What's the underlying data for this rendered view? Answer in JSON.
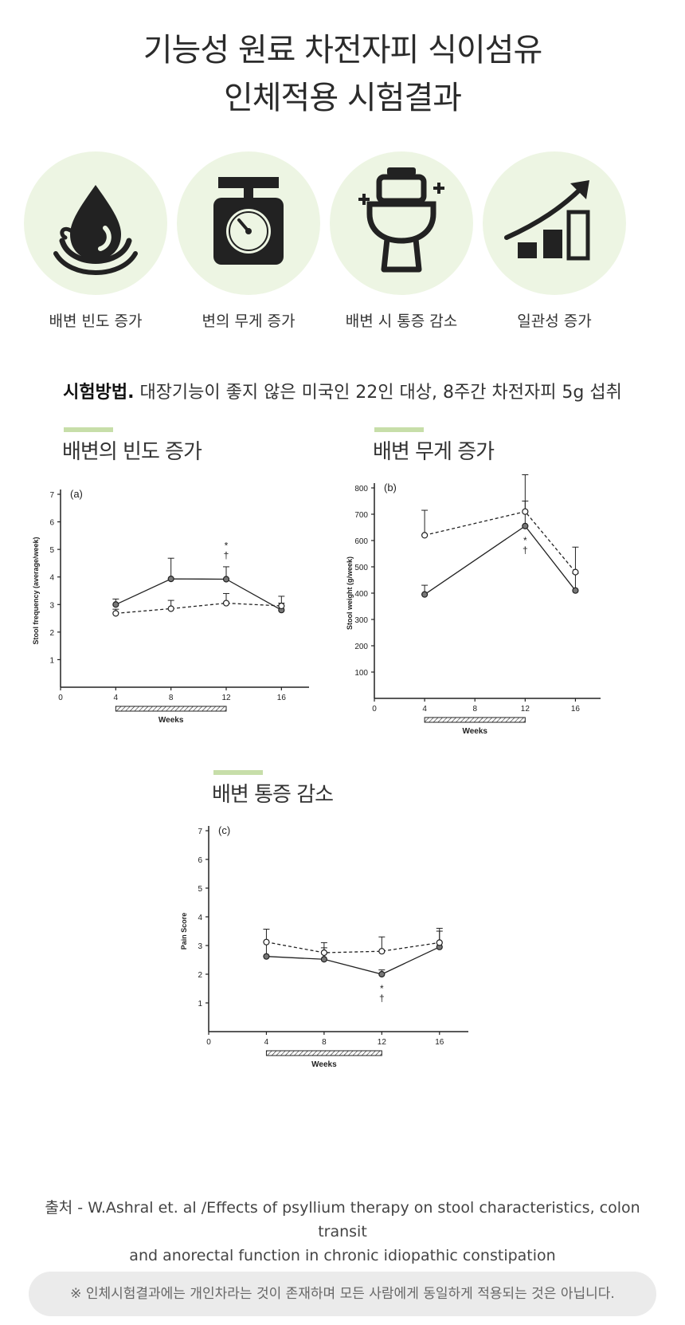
{
  "header": {
    "line1": "기능성 원료 차전자피 식이섬유",
    "line2": "인체적용 시험결과"
  },
  "benefits": [
    {
      "label": "배변 빈도 증가",
      "icon": "water-drop-icon"
    },
    {
      "label": "변의 무게 증가",
      "icon": "scale-icon"
    },
    {
      "label": "배변 시 통증 감소",
      "icon": "toilet-icon"
    },
    {
      "label": "일관성 증가",
      "icon": "growth-chart-icon"
    }
  ],
  "method": {
    "prefix": "시험방법.",
    "text": "대장기능이 좋지 않은 미국인 22인 대상, 8주간 차전자피 5g 섭취"
  },
  "colors": {
    "accent_bar": "#c7dea9",
    "icon_bg": "#edf5e3"
  },
  "chart_titles": [
    "배변의 빈도 증가",
    "배변 무게 증가",
    "배변 통증 감소"
  ],
  "chart_data": [
    {
      "type": "line",
      "panel": "(a)",
      "ylabel": "Stool frequency (average/week)",
      "xlabel": "Weeks",
      "xlim": [
        0,
        18
      ],
      "ylim": [
        0,
        7
      ],
      "xticks": [
        0,
        4,
        8,
        12,
        16
      ],
      "yticks": [
        1,
        2,
        3,
        4,
        5,
        6,
        7
      ],
      "x": [
        4,
        8,
        12,
        16
      ],
      "series": [
        {
          "style": "solid-filled",
          "values": [
            3.0,
            3.93,
            3.92,
            2.8
          ],
          "err": [
            0.2,
            0.75,
            0.45,
            0.25
          ]
        },
        {
          "style": "dashed-open",
          "values": [
            2.68,
            2.85,
            3.05,
            2.95
          ],
          "err": [
            0.15,
            0.3,
            0.35,
            0.35
          ]
        }
      ],
      "annotations": [
        {
          "x": 12,
          "text": "*"
        },
        {
          "x": 12,
          "text": "†"
        }
      ],
      "treatment_bar": [
        4,
        12
      ]
    },
    {
      "type": "line",
      "panel": "(b)",
      "ylabel": "Stool weight (g/week)",
      "xlabel": "Weeks",
      "xlim": [
        0,
        18
      ],
      "ylim": [
        0,
        800
      ],
      "xticks": [
        0,
        4,
        8,
        12,
        16
      ],
      "yticks": [
        100,
        200,
        300,
        400,
        500,
        600,
        700,
        800
      ],
      "x": [
        4,
        12,
        16
      ],
      "series": [
        {
          "style": "solid-filled",
          "values": [
            395,
            655,
            410
          ],
          "err": [
            35,
            95,
            65
          ]
        },
        {
          "style": "dashed-open",
          "values": [
            620,
            710,
            480
          ],
          "err": [
            95,
            140,
            95
          ]
        }
      ],
      "annotations": [
        {
          "x": 12,
          "text": "*"
        },
        {
          "x": 12,
          "text": "†"
        }
      ],
      "treatment_bar": [
        4,
        12
      ]
    },
    {
      "type": "line",
      "panel": "(c)",
      "ylabel": "Pain Score",
      "xlabel": "Weeks",
      "xlim": [
        0,
        18
      ],
      "ylim": [
        0,
        7
      ],
      "xticks": [
        0,
        4,
        8,
        12,
        16
      ],
      "yticks": [
        1,
        2,
        3,
        4,
        5,
        6,
        7
      ],
      "x": [
        4,
        8,
        12,
        16
      ],
      "series": [
        {
          "style": "solid-filled",
          "values": [
            2.62,
            2.52,
            2.0,
            2.95
          ],
          "err": [
            0.5,
            0.4,
            0.15,
            0.55
          ]
        },
        {
          "style": "dashed-open",
          "values": [
            3.12,
            2.75,
            2.8,
            3.1
          ],
          "err": [
            0.45,
            0.35,
            0.5,
            0.5
          ]
        }
      ],
      "annotations": [
        {
          "x": 12,
          "text": "*"
        },
        {
          "x": 12,
          "text": "†"
        }
      ],
      "treatment_bar": [
        4,
        12
      ]
    }
  ],
  "source": {
    "line1": "출처 - W.Ashral et. al /Effects of psyllium therapy on stool characteristics, colon transit",
    "line2": "and anorectal function in chronic idiopathic constipation"
  },
  "note": "※ 인체시험결과에는 개인차라는 것이 존재하며 모든 사람에게 동일하게 적용되는 것은 아닙니다."
}
